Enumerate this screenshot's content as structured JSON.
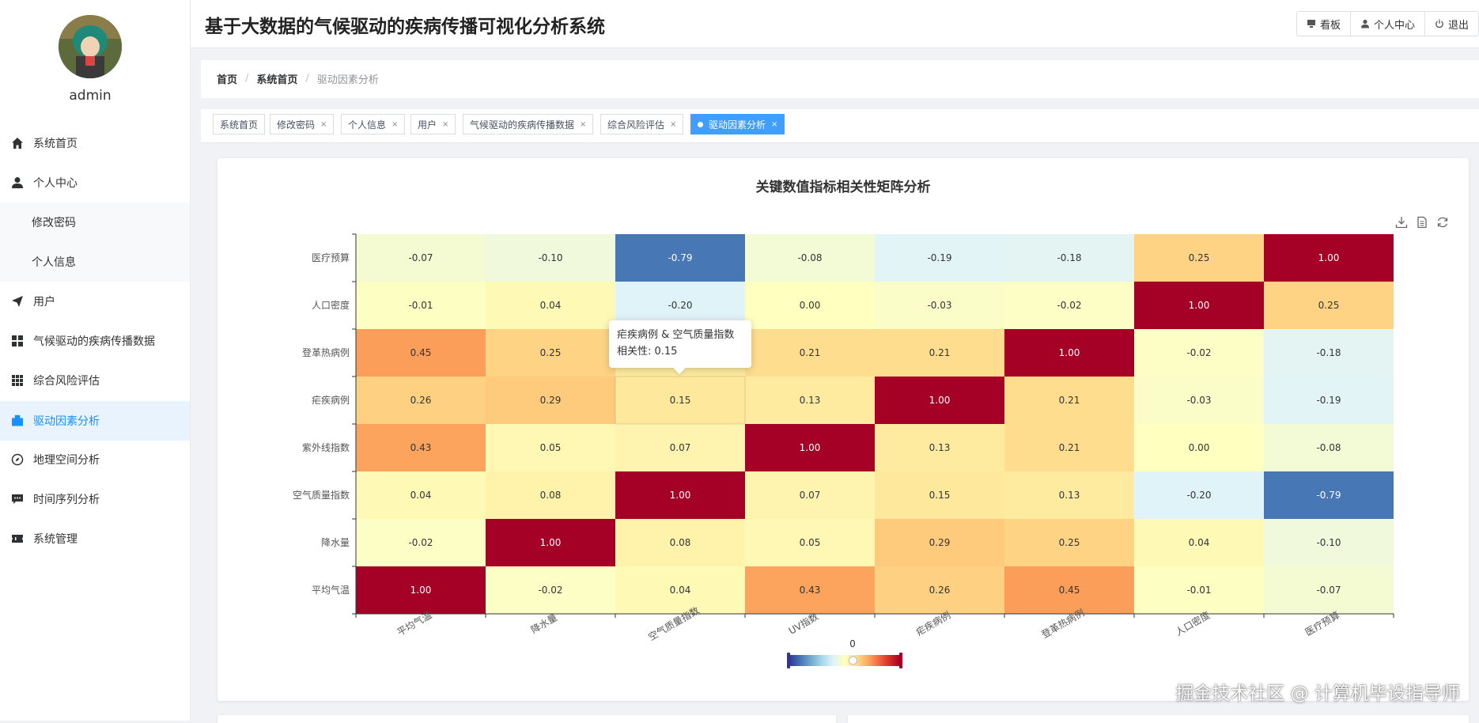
{
  "app": {
    "title": "基于大数据的气候驱动的疾病传播可视化分析系统"
  },
  "user": {
    "name": "admin"
  },
  "header_buttons": [
    {
      "label": "看板",
      "icon": "monitor-icon"
    },
    {
      "label": "个人中心",
      "icon": "user-icon"
    },
    {
      "label": "退出",
      "icon": "power-icon"
    }
  ],
  "sidebar": {
    "items": [
      {
        "label": "系统首页",
        "icon": "home-icon"
      },
      {
        "label": "个人中心",
        "icon": "user-icon"
      },
      {
        "label": "修改密码"
      },
      {
        "label": "个人信息"
      },
      {
        "label": "用户",
        "icon": "send-icon"
      },
      {
        "label": "气候驱动的疾病传播数据",
        "icon": "grid-icon"
      },
      {
        "label": "综合风险评估",
        "icon": "apps-icon"
      },
      {
        "label": "驱动因素分析",
        "icon": "briefcase-icon"
      },
      {
        "label": "地理空间分析",
        "icon": "compass-icon"
      },
      {
        "label": "时间序列分析",
        "icon": "chat-icon"
      },
      {
        "label": "系统管理",
        "icon": "ticket-icon"
      }
    ]
  },
  "breadcrumb": {
    "items": [
      "首页",
      "系统首页",
      "驱动因素分析"
    ]
  },
  "tags": [
    {
      "label": "系统首页",
      "closable": false
    },
    {
      "label": "修改密码",
      "closable": true
    },
    {
      "label": "个人信息",
      "closable": true
    },
    {
      "label": "用户",
      "closable": true
    },
    {
      "label": "气候驱动的疾病传播数据",
      "closable": true
    },
    {
      "label": "综合风险评估",
      "closable": true
    },
    {
      "label": "驱动因素分析",
      "closable": true,
      "active": true
    }
  ],
  "tag_close": "×",
  "tooltip": {
    "title": "疟疾病例 & 空气质量指数",
    "value": "相关性: 0.15"
  },
  "watermark": "掘金技术社区 @ 计算机毕设指导师",
  "chart_data": {
    "type": "heatmap",
    "title": "关键数值指标相关性矩阵分析",
    "x_categories": [
      "平均气温",
      "降水量",
      "空气质量指数",
      "UV指数",
      "疟疾病例",
      "登革热病例",
      "人口密度",
      "医疗预算"
    ],
    "y_categories": [
      "平均气温",
      "降水量",
      "空气质量指数",
      "紫外线指数",
      "疟疾病例",
      "登革热病例",
      "人口密度",
      "医疗预算"
    ],
    "values": [
      [
        1.0,
        -0.02,
        0.04,
        0.43,
        0.26,
        0.45,
        -0.01,
        -0.07
      ],
      [
        -0.02,
        1.0,
        0.08,
        0.05,
        0.29,
        0.25,
        0.04,
        -0.1
      ],
      [
        0.04,
        0.08,
        1.0,
        0.07,
        0.15,
        0.13,
        -0.2,
        -0.79
      ],
      [
        0.43,
        0.05,
        0.07,
        1.0,
        0.13,
        0.21,
        0.0,
        -0.08
      ],
      [
        0.26,
        0.29,
        0.15,
        0.13,
        1.0,
        0.21,
        -0.03,
        -0.19
      ],
      [
        0.45,
        0.25,
        0.13,
        0.21,
        0.21,
        1.0,
        -0.02,
        -0.18
      ],
      [
        -0.01,
        0.04,
        -0.2,
        0.0,
        -0.03,
        -0.02,
        1.0,
        0.25
      ],
      [
        -0.07,
        -0.1,
        -0.79,
        -0.08,
        -0.19,
        -0.18,
        0.25,
        1.0
      ]
    ],
    "visual_map": {
      "min": -1,
      "max": 1,
      "handle_label": "0"
    },
    "colors": [
      "#313695",
      "#4575b4",
      "#74add1",
      "#abd9e9",
      "#e0f3f8",
      "#ffffbf",
      "#fee090",
      "#fdae61",
      "#f46d43",
      "#d73027",
      "#a50026"
    ]
  }
}
